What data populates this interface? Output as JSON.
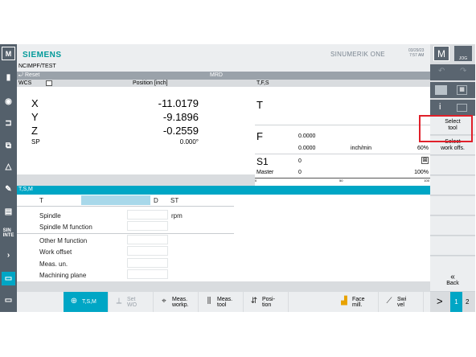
{
  "app": {
    "logo": "SIEMENS",
    "product": "SINUMERIK ONE",
    "date": "03/29/23",
    "time": "7:57 AM"
  },
  "program": {
    "path": "NCIMPF/TEST"
  },
  "status": {
    "reset": "Reset",
    "mode": "MRD"
  },
  "wcs": {
    "label": "WCS",
    "position_header": "Position [inch]",
    "axes": [
      {
        "name": "X",
        "value": "-11.0179"
      },
      {
        "name": "Y",
        "value": "-9.1896"
      },
      {
        "name": "Z",
        "value": "-0.2559"
      }
    ],
    "sp": {
      "name": "SP",
      "value": "0.000°"
    }
  },
  "tfs": {
    "label": "T,F,S",
    "t": "T",
    "f": "F",
    "f_value1": "0.0000",
    "f_value2": "0.0000",
    "f_unit": "inch/min",
    "f_percent": "60%",
    "s": "S1",
    "s_value": "0",
    "master": "Master",
    "master_value": "0",
    "master_percent": "100%",
    "scale": [
      "0",
      "50",
      "100"
    ]
  },
  "tsm": {
    "title": "T,S,M",
    "t_label": "T",
    "d_label": "D",
    "st_label": "ST",
    "fields": [
      {
        "label": "Spindle",
        "unit": "rpm"
      },
      {
        "label": "Spindle M function",
        "unit": ""
      },
      {
        "label": "Other M function",
        "unit": ""
      },
      {
        "label": "Work offset",
        "unit": ""
      },
      {
        "label": "Meas. un.",
        "unit": ""
      },
      {
        "label": "Machining plane",
        "unit": ""
      }
    ]
  },
  "right_top": {
    "m": "M",
    "jog": "JOG",
    "info": "i"
  },
  "vsoft": {
    "select_tool": "Select tool",
    "select_work_offs": "Select work offs.",
    "back": "Back"
  },
  "hsoft": [
    {
      "label": "T,S,M",
      "icon": "tsm-icon",
      "active": true
    },
    {
      "label": "Set WO",
      "icon": "set-wo-icon",
      "active": false
    },
    {
      "label": "Meas. workp.",
      "icon": "meas-workp-icon",
      "active": false
    },
    {
      "label": "Meas. tool",
      "icon": "meas-tool-icon",
      "active": false
    },
    {
      "label": "Posi- tion",
      "icon": "position-icon",
      "active": false
    },
    {
      "label": "Face mill.",
      "icon": "face-mill-icon",
      "active": false
    },
    {
      "label": "Swi vel",
      "icon": "swivel-icon",
      "active": false
    }
  ],
  "pager": {
    "next": ">",
    "p1": "1",
    "p2": "2"
  },
  "colors": {
    "accent": "#00a6c5",
    "highlight_box": "#e0202a",
    "logo": "#009999"
  }
}
